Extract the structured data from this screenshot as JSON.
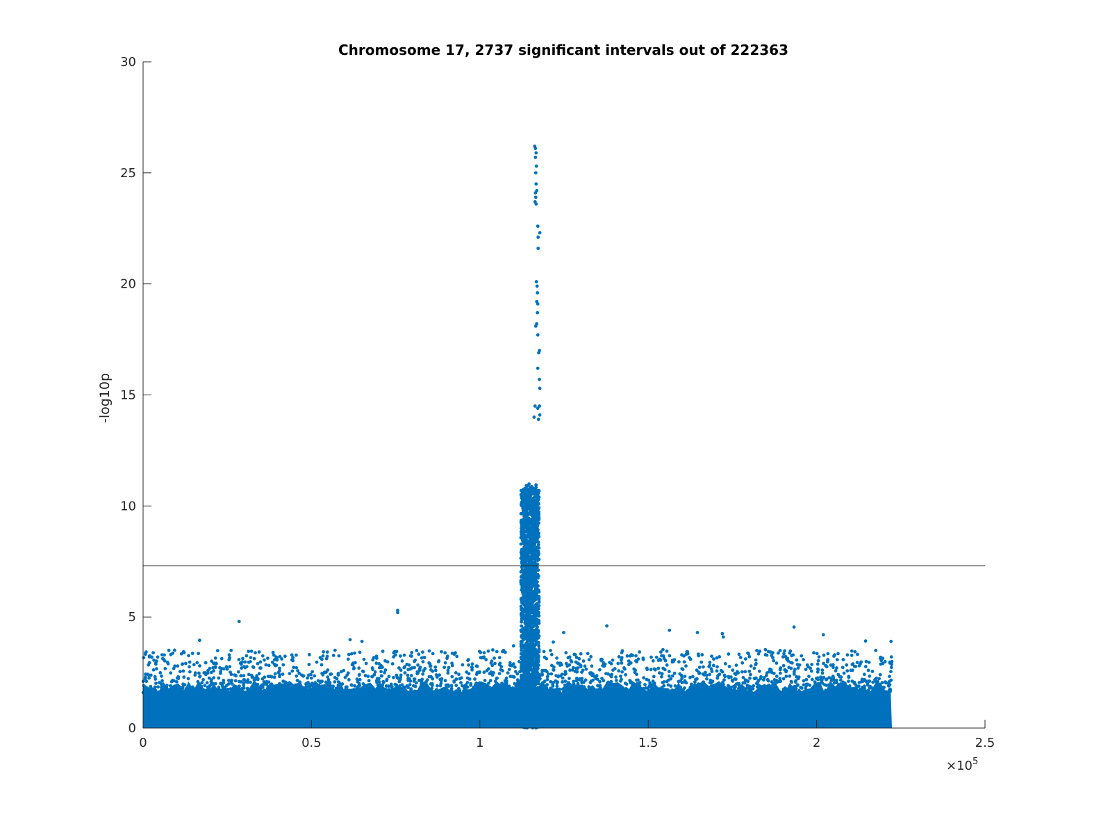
{
  "chart_data": {
    "type": "scatter",
    "title": "Chromosome 17, 2737 significant intervals out of 222363",
    "xlabel": "",
    "ylabel": "-log10p",
    "xlim": [
      0,
      250000
    ],
    "ylim": [
      0,
      30
    ],
    "x_ticks": [
      0,
      50000,
      100000,
      150000,
      200000,
      250000
    ],
    "x_tick_labels": [
      "0",
      "0.5",
      "1",
      "1.5",
      "2",
      "2.5"
    ],
    "x_exponent_prefix": "×10",
    "x_exponent_power": "5",
    "y_ticks": [
      0,
      5,
      10,
      15,
      20,
      25,
      30
    ],
    "y_tick_labels": [
      "0",
      "5",
      "10",
      "15",
      "20",
      "25",
      "30"
    ],
    "significance_threshold": 7.3,
    "marker_color": "#0072BD",
    "grid": false,
    "data_extent_x": [
      0,
      222363
    ],
    "peak_points": [
      {
        "x": 116300,
        "y": 26.2
      },
      {
        "x": 116500,
        "y": 26.1
      },
      {
        "x": 116700,
        "y": 25.9
      },
      {
        "x": 116500,
        "y": 25.7
      },
      {
        "x": 116800,
        "y": 25.3
      },
      {
        "x": 116600,
        "y": 25.0
      },
      {
        "x": 116700,
        "y": 24.5
      },
      {
        "x": 116900,
        "y": 24.2
      },
      {
        "x": 116500,
        "y": 24.1
      },
      {
        "x": 116600,
        "y": 23.9
      },
      {
        "x": 116400,
        "y": 23.7
      },
      {
        "x": 116700,
        "y": 23.6
      },
      {
        "x": 117200,
        "y": 22.6
      },
      {
        "x": 117800,
        "y": 22.3
      },
      {
        "x": 117300,
        "y": 22.1
      },
      {
        "x": 117300,
        "y": 21.6
      },
      {
        "x": 116800,
        "y": 20.1
      },
      {
        "x": 117000,
        "y": 19.9
      },
      {
        "x": 117100,
        "y": 19.6
      },
      {
        "x": 116900,
        "y": 19.2
      },
      {
        "x": 117200,
        "y": 19.1
      },
      {
        "x": 117100,
        "y": 18.7
      },
      {
        "x": 116900,
        "y": 18.2
      },
      {
        "x": 116600,
        "y": 18.1
      },
      {
        "x": 117200,
        "y": 17.7
      },
      {
        "x": 117500,
        "y": 16.9
      },
      {
        "x": 117700,
        "y": 17.0
      },
      {
        "x": 117200,
        "y": 16.2
      },
      {
        "x": 117700,
        "y": 15.7
      },
      {
        "x": 117800,
        "y": 15.3
      },
      {
        "x": 116400,
        "y": 14.5
      },
      {
        "x": 117700,
        "y": 14.5
      },
      {
        "x": 117200,
        "y": 14.4
      },
      {
        "x": 116100,
        "y": 14.0
      },
      {
        "x": 117800,
        "y": 14.1
      },
      {
        "x": 117400,
        "y": 13.9
      }
    ],
    "outlier_points": [
      {
        "x": 28500,
        "y": 4.8
      },
      {
        "x": 75600,
        "y": 5.3
      },
      {
        "x": 75600,
        "y": 5.2
      },
      {
        "x": 137700,
        "y": 4.6
      },
      {
        "x": 156300,
        "y": 4.4
      },
      {
        "x": 164600,
        "y": 4.3
      },
      {
        "x": 172000,
        "y": 4.25
      },
      {
        "x": 172300,
        "y": 4.1
      },
      {
        "x": 193300,
        "y": 4.55
      },
      {
        "x": 202000,
        "y": 4.2
      },
      {
        "x": 16800,
        "y": 3.95
      },
      {
        "x": 222100,
        "y": 3.9
      },
      {
        "x": 124900,
        "y": 4.3
      },
      {
        "x": 110000,
        "y": 3.7
      },
      {
        "x": 166000,
        "y": 3.3
      },
      {
        "x": 145000,
        "y": 3.3
      },
      {
        "x": 65000,
        "y": 3.9
      },
      {
        "x": 57000,
        "y": 3.5
      }
    ]
  }
}
